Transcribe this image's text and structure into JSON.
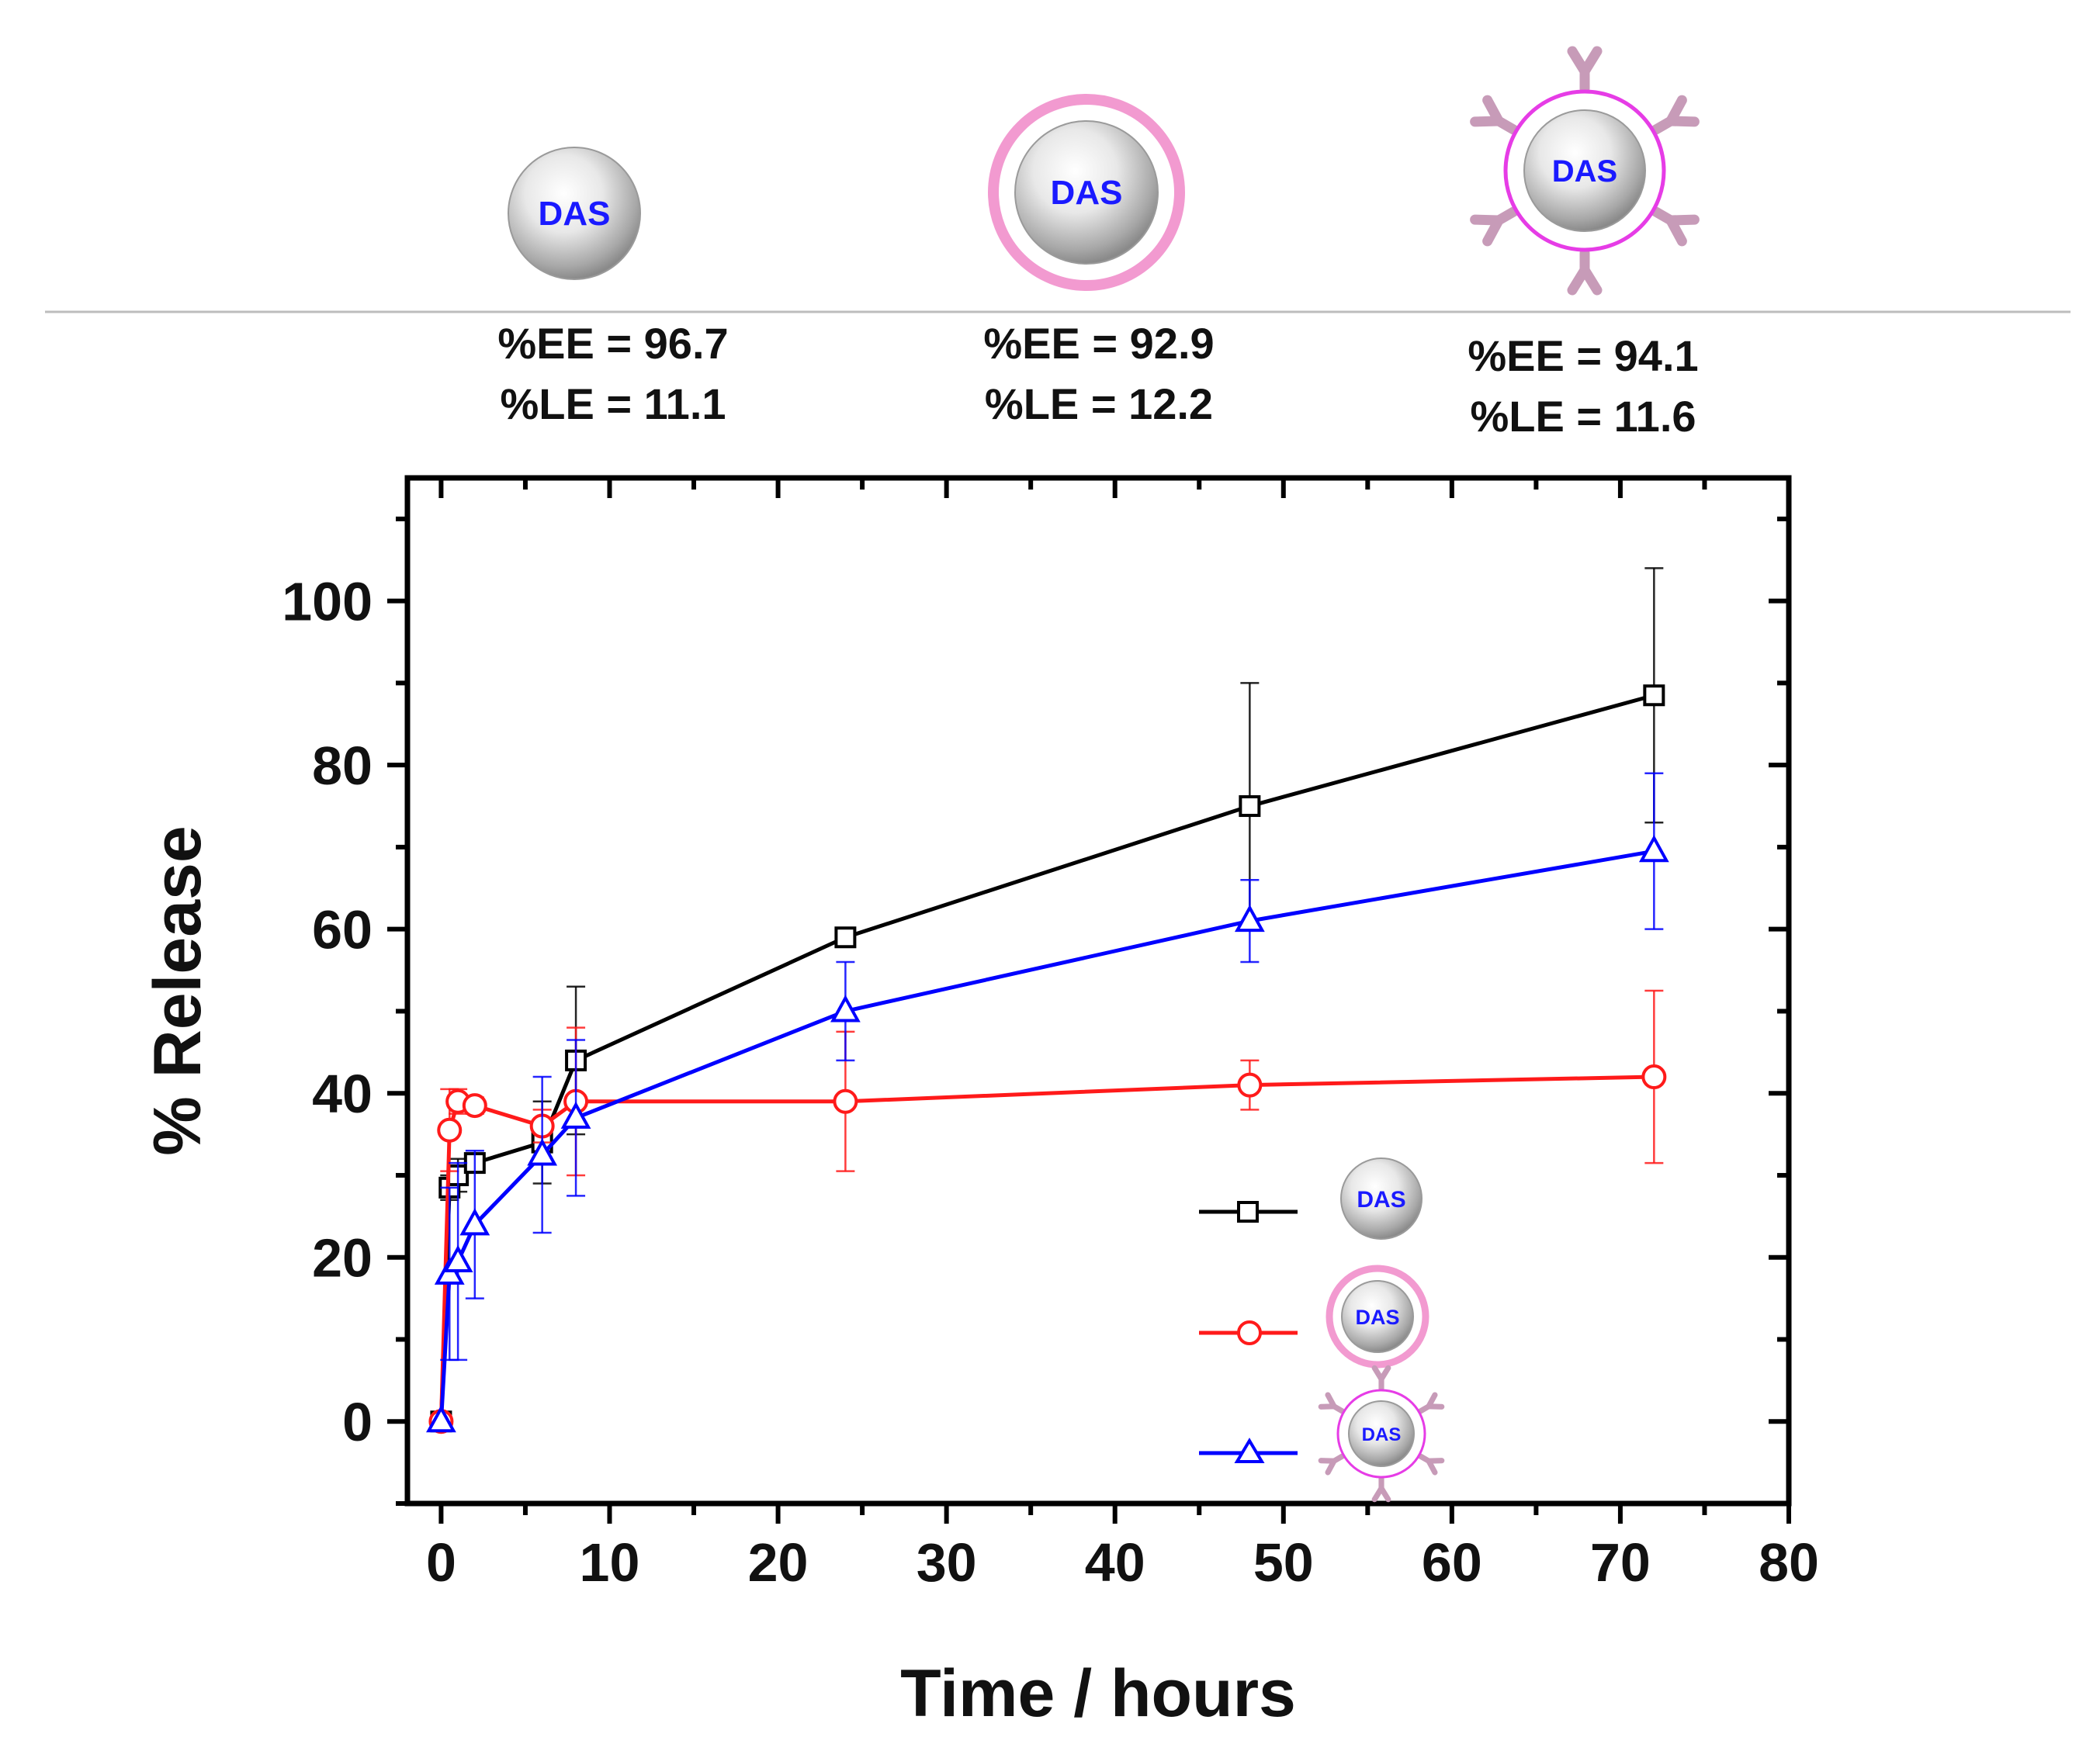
{
  "header": {
    "particles": [
      {
        "name": "bare",
        "label": "DAS",
        "ee_text": "%EE = 96.7",
        "le_text": "%LE = 11.1"
      },
      {
        "name": "coated",
        "label": "DAS",
        "ee_text": "%EE = 92.9",
        "le_text": "%LE = 12.2"
      },
      {
        "name": "antibody",
        "label": "DAS",
        "ee_text": "%EE = 94.1",
        "le_text": "%LE = 11.6"
      }
    ]
  },
  "colors": {
    "bare": "#000000",
    "coated": "#ff1a1a",
    "antibody": "#0000ff",
    "pink_ring": "#f29ad0",
    "magenta_ring": "#e63ce6",
    "antibody_arm": "#c79bb8",
    "label_text": "#1a1aff"
  },
  "chart_data": {
    "type": "line",
    "xlabel": "Time / hours",
    "ylabel": "% Release",
    "xlim": [
      -2,
      80
    ],
    "ylim": [
      -10,
      115
    ],
    "xticks": [
      0,
      10,
      20,
      30,
      40,
      50,
      60,
      70,
      80
    ],
    "yticks": [
      0,
      20,
      40,
      60,
      80,
      100
    ],
    "xtick_labels": [
      "0",
      "10",
      "20",
      "30",
      "40",
      "50",
      "60",
      "70",
      "80"
    ],
    "ytick_labels": [
      "0",
      "20",
      "40",
      "60",
      "80",
      "100"
    ],
    "legend_position": "bottom-right",
    "series": [
      {
        "name": "DAS (bare)",
        "marker": "square",
        "color": "#000000",
        "legend_label": "DAS",
        "x": [
          0,
          0.5,
          1,
          2,
          6,
          8,
          24,
          48,
          72
        ],
        "y": [
          0,
          28.5,
          30,
          31.5,
          34,
          44,
          59,
          75,
          88.5
        ],
        "err": [
          0,
          1.5,
          2,
          1,
          5,
          9,
          1,
          15,
          15.5
        ]
      },
      {
        "name": "DAS (coated)",
        "marker": "circle",
        "color": "#ff1a1a",
        "legend_label": "DAS",
        "x": [
          0,
          0.5,
          1,
          2,
          6,
          8,
          24,
          48,
          72
        ],
        "y": [
          0,
          35.5,
          39,
          38.5,
          36,
          39,
          39,
          41,
          42
        ],
        "err": [
          0,
          5,
          1.5,
          1,
          2,
          9,
          8.5,
          3,
          10.5
        ]
      },
      {
        "name": "DAS (antibody-conjugated)",
        "marker": "triangle",
        "color": "#0000ff",
        "legend_label": "DAS",
        "x": [
          0,
          0.5,
          1,
          2,
          6,
          8,
          24,
          48,
          72
        ],
        "y": [
          0,
          18,
          19.5,
          24,
          32.5,
          37,
          50,
          61,
          69.5
        ],
        "err": [
          0,
          10.5,
          12,
          9,
          9.5,
          9.5,
          6,
          5,
          9.5
        ]
      }
    ]
  }
}
